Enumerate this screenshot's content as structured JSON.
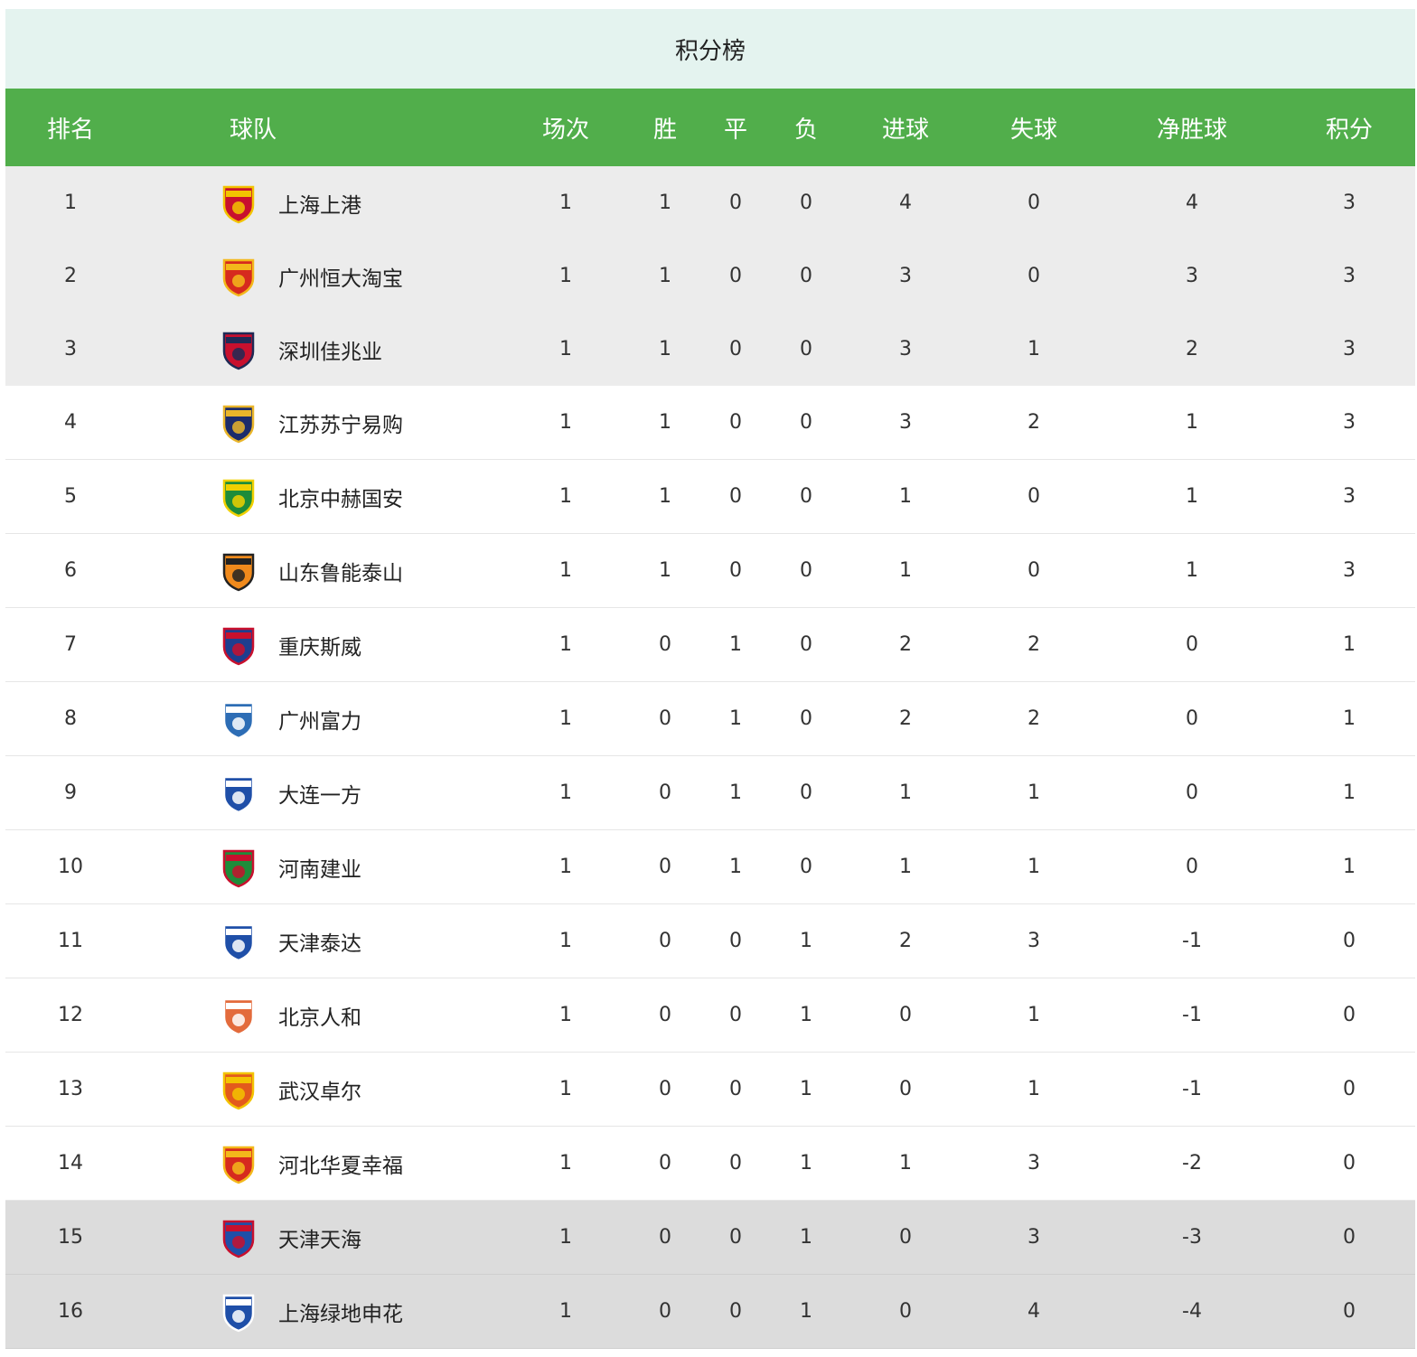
{
  "title": "积分榜",
  "columns": {
    "rank": "排名",
    "team": "球队",
    "played": "场次",
    "won": "胜",
    "draw": "平",
    "lost": "负",
    "gf": "进球",
    "ga": "失球",
    "gd": "净胜球",
    "pts": "积分"
  },
  "rows": [
    {
      "rank": "1",
      "team": "上海上港",
      "played": "1",
      "won": "1",
      "draw": "0",
      "lost": "0",
      "gf": "4",
      "ga": "0",
      "gd": "4",
      "pts": "3",
      "logo": {
        "icon": "shanghai-sipg-crest-icon",
        "color": "#c8102e",
        "accent": "#f2c300"
      }
    },
    {
      "rank": "2",
      "team": "广州恒大淘宝",
      "played": "1",
      "won": "1",
      "draw": "0",
      "lost": "0",
      "gf": "3",
      "ga": "0",
      "gd": "3",
      "pts": "3",
      "logo": {
        "icon": "guangzhou-evergrande-crest-icon",
        "color": "#d62a1e",
        "accent": "#f3b81b"
      }
    },
    {
      "rank": "3",
      "team": "深圳佳兆业",
      "played": "1",
      "won": "1",
      "draw": "0",
      "lost": "0",
      "gf": "3",
      "ga": "1",
      "gd": "2",
      "pts": "3",
      "logo": {
        "icon": "shenzhen-fc-crest-icon",
        "color": "#c8102e",
        "accent": "#1f2a55"
      }
    },
    {
      "rank": "4",
      "team": "江苏苏宁易购",
      "played": "1",
      "won": "1",
      "draw": "0",
      "lost": "0",
      "gf": "3",
      "ga": "2",
      "gd": "1",
      "pts": "3",
      "logo": {
        "icon": "jiangsu-suning-crest-icon",
        "color": "#1c2c6b",
        "accent": "#e9b52a"
      }
    },
    {
      "rank": "5",
      "team": "北京中赫国安",
      "played": "1",
      "won": "1",
      "draw": "0",
      "lost": "0",
      "gf": "1",
      "ga": "0",
      "gd": "1",
      "pts": "3",
      "logo": {
        "icon": "beijing-guoan-crest-icon",
        "color": "#1e8c3a",
        "accent": "#f0d000"
      }
    },
    {
      "rank": "6",
      "team": "山东鲁能泰山",
      "played": "1",
      "won": "1",
      "draw": "0",
      "lost": "0",
      "gf": "1",
      "ga": "0",
      "gd": "1",
      "pts": "3",
      "logo": {
        "icon": "shandong-luneng-crest-icon",
        "color": "#f08a1c",
        "accent": "#222222"
      }
    },
    {
      "rank": "7",
      "team": "重庆斯威",
      "played": "1",
      "won": "0",
      "draw": "1",
      "lost": "0",
      "gf": "2",
      "ga": "2",
      "gd": "0",
      "pts": "1",
      "logo": {
        "icon": "chongqing-swm-crest-icon",
        "color": "#1d3e8f",
        "accent": "#c8102e"
      }
    },
    {
      "rank": "8",
      "team": "广州富力",
      "played": "1",
      "won": "0",
      "draw": "1",
      "lost": "0",
      "gf": "2",
      "ga": "2",
      "gd": "0",
      "pts": "1",
      "logo": {
        "icon": "guangzhou-rf-crest-icon",
        "color": "#2d6db5",
        "accent": "#ffffff"
      }
    },
    {
      "rank": "9",
      "team": "大连一方",
      "played": "1",
      "won": "0",
      "draw": "1",
      "lost": "0",
      "gf": "1",
      "ga": "1",
      "gd": "0",
      "pts": "1",
      "logo": {
        "icon": "dalian-yifang-crest-icon",
        "color": "#1f4fa8",
        "accent": "#ffffff"
      }
    },
    {
      "rank": "10",
      "team": "河南建业",
      "played": "1",
      "won": "0",
      "draw": "1",
      "lost": "0",
      "gf": "1",
      "ga": "1",
      "gd": "0",
      "pts": "1",
      "logo": {
        "icon": "henan-jianye-crest-icon",
        "color": "#1e8c3a",
        "accent": "#c8102e"
      }
    },
    {
      "rank": "11",
      "team": "天津泰达",
      "played": "1",
      "won": "0",
      "draw": "0",
      "lost": "1",
      "gf": "2",
      "ga": "3",
      "gd": "-1",
      "pts": "0",
      "logo": {
        "icon": "tianjin-teda-crest-icon",
        "color": "#1f4fa8",
        "accent": "#ffffff"
      }
    },
    {
      "rank": "12",
      "team": "北京人和",
      "played": "1",
      "won": "0",
      "draw": "0",
      "lost": "1",
      "gf": "0",
      "ga": "1",
      "gd": "-1",
      "pts": "0",
      "logo": {
        "icon": "beijing-renhe-crest-icon",
        "color": "#e36b3c",
        "accent": "#ffffff"
      }
    },
    {
      "rank": "13",
      "team": "武汉卓尔",
      "played": "1",
      "won": "0",
      "draw": "0",
      "lost": "1",
      "gf": "0",
      "ga": "1",
      "gd": "-1",
      "pts": "0",
      "logo": {
        "icon": "wuhan-zall-crest-icon",
        "color": "#e35a1c",
        "accent": "#f3c300"
      }
    },
    {
      "rank": "14",
      "team": "河北华夏幸福",
      "played": "1",
      "won": "0",
      "draw": "0",
      "lost": "1",
      "gf": "1",
      "ga": "3",
      "gd": "-2",
      "pts": "0",
      "logo": {
        "icon": "hebei-cffc-crest-icon",
        "color": "#d62a1e",
        "accent": "#f3b81b"
      }
    },
    {
      "rank": "15",
      "team": "天津天海",
      "played": "1",
      "won": "0",
      "draw": "0",
      "lost": "1",
      "gf": "0",
      "ga": "3",
      "gd": "-3",
      "pts": "0",
      "logo": {
        "icon": "tianjin-tianhai-crest-icon",
        "color": "#1f4fa8",
        "accent": "#c8102e"
      }
    },
    {
      "rank": "16",
      "team": "上海绿地申花",
      "played": "1",
      "won": "0",
      "draw": "0",
      "lost": "1",
      "gf": "0",
      "ga": "4",
      "gd": "-4",
      "pts": "0",
      "logo": {
        "icon": "shanghai-shenhua-crest-icon",
        "color": "#1f4fa8",
        "accent": "#ffffff"
      }
    }
  ],
  "colors": {
    "header_green": "#51ae4b",
    "title_bg": "#e4f3ef",
    "top3_bg": "#ececec",
    "relegation_bg": "#dcdcdc"
  }
}
